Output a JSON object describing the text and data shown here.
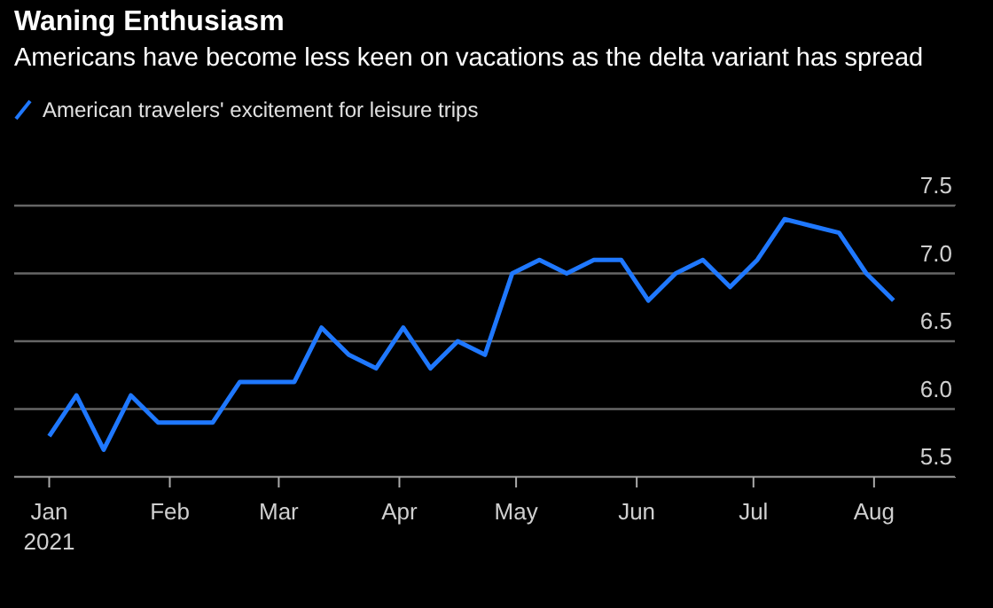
{
  "chart_data": {
    "type": "line",
    "title": "Waning Enthusiasm",
    "subtitle": "Americans have become less keen on vacations as the delta variant has spread",
    "x": [
      "2021-01-01",
      "2021-01-08",
      "2021-01-15",
      "2021-01-22",
      "2021-01-29",
      "2021-02-05",
      "2021-02-12",
      "2021-02-19",
      "2021-02-26",
      "2021-03-05",
      "2021-03-12",
      "2021-03-19",
      "2021-03-26",
      "2021-04-02",
      "2021-04-09",
      "2021-04-16",
      "2021-04-23",
      "2021-04-30",
      "2021-05-07",
      "2021-05-14",
      "2021-05-21",
      "2021-05-28",
      "2021-06-04",
      "2021-06-11",
      "2021-06-18",
      "2021-06-25",
      "2021-07-02",
      "2021-07-09",
      "2021-07-16",
      "2021-07-23",
      "2021-07-30",
      "2021-08-06"
    ],
    "series": [
      {
        "name": "American travelers' excitement for leisure trips",
        "color": "#1f78ff",
        "values": [
          5.8,
          6.1,
          5.7,
          6.1,
          5.9,
          5.9,
          5.9,
          6.2,
          6.2,
          6.2,
          6.6,
          6.4,
          6.3,
          6.6,
          6.3,
          6.5,
          6.4,
          7.0,
          7.1,
          7.0,
          7.1,
          7.1,
          6.8,
          7.0,
          7.1,
          6.9,
          7.1,
          7.4,
          7.35,
          7.3,
          7.0,
          6.8
        ]
      }
    ],
    "xlim": [
      "2020-12-23",
      "2021-08-22"
    ],
    "xticks": [
      {
        "value": "2021-01-01",
        "label": "Jan\n2021"
      },
      {
        "value": "2021-02-01",
        "label": "Feb"
      },
      {
        "value": "2021-03-01",
        "label": "Mar"
      },
      {
        "value": "2021-04-01",
        "label": "Apr"
      },
      {
        "value": "2021-05-01",
        "label": "May"
      },
      {
        "value": "2021-06-01",
        "label": "Jun"
      },
      {
        "value": "2021-07-01",
        "label": "Jul"
      },
      {
        "value": "2021-08-01",
        "label": "Aug"
      }
    ],
    "ylim": [
      5.5,
      7.5
    ],
    "yticks": [
      5.5,
      {
        "value": 6,
        "label": "6.0"
      },
      6.5,
      {
        "value": 7,
        "label": "7.0"
      },
      7.5
    ],
    "grid": "y",
    "legend": "top left",
    "marker": "none",
    "line_style": "solid"
  }
}
